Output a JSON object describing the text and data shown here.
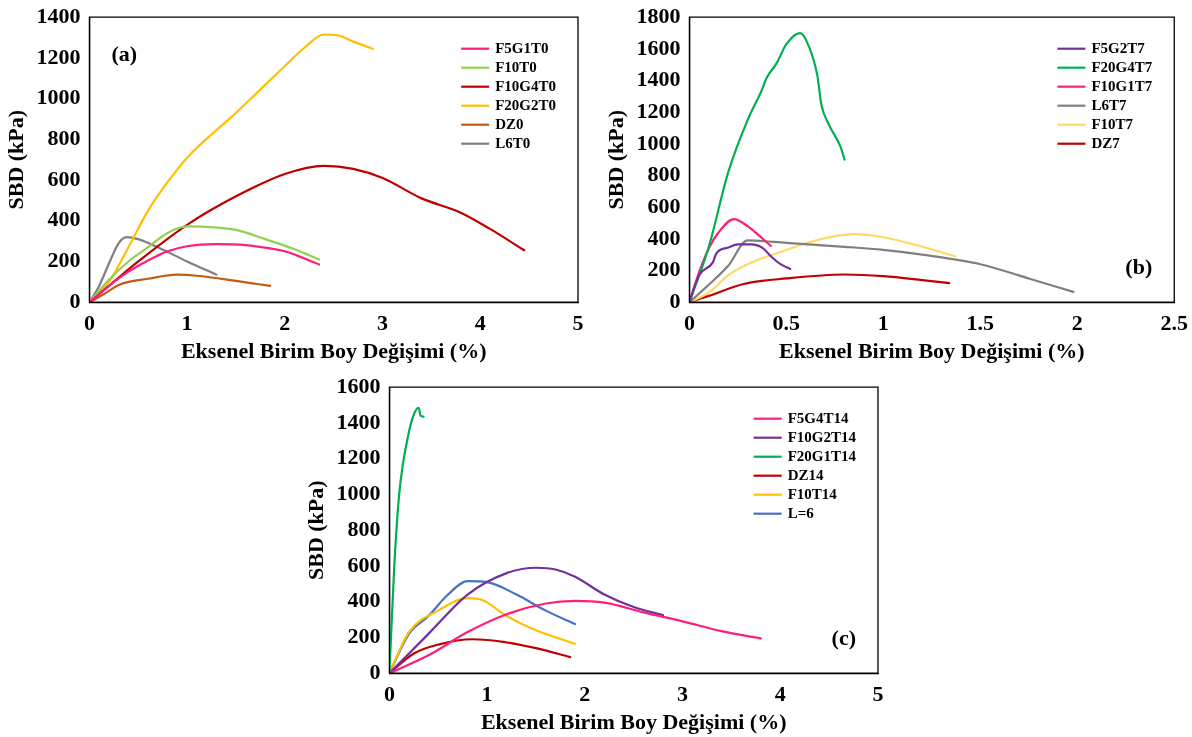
{
  "chart_data": [
    {
      "type": "line",
      "xlabel": "Eksenel Birim Boy Değişimi (%)",
      "ylabel": "SBD (kPa)",
      "annotations": [
        "(a)"
      ],
      "xlim": [
        0,
        5
      ],
      "xticks": [
        0,
        1,
        2,
        3,
        4,
        5
      ],
      "ylim": [
        0,
        1400
      ],
      "yticks": [
        0,
        200,
        400,
        600,
        800,
        1000,
        1200,
        1400
      ],
      "grid": false,
      "legend": "top right",
      "marker": "none",
      "line_style": "solid",
      "series": [
        {
          "name": "F5G1T0",
          "color": "#ff1f7a",
          "x": [
            0,
            0.2,
            0.4,
            0.6,
            0.8,
            1,
            1.3,
            1.6,
            2,
            2.35
          ],
          "values": [
            0,
            80,
            150,
            205,
            250,
            275,
            285,
            280,
            250,
            185
          ]
        },
        {
          "name": "F10T0",
          "color": "#92d050",
          "x": [
            0,
            0.2,
            0.4,
            0.6,
            0.8,
            1,
            1.2,
            1.5,
            1.8,
            2.1,
            2.35
          ],
          "values": [
            0,
            110,
            200,
            270,
            340,
            372,
            370,
            355,
            310,
            260,
            210
          ]
        },
        {
          "name": "F10G4T0",
          "color": "#c00000",
          "x": [
            0,
            0.2,
            0.5,
            1,
            1.5,
            2,
            2.4,
            2.7,
            3,
            3.4,
            3.8,
            4.1,
            4.45
          ],
          "values": [
            0,
            80,
            200,
            380,
            520,
            630,
            670,
            655,
            610,
            510,
            440,
            360,
            255
          ]
        },
        {
          "name": "F20G2T0",
          "color": "#ffc000",
          "x": [
            0,
            0.2,
            0.4,
            0.6,
            0.8,
            1,
            1.5,
            2,
            2.2,
            2.4,
            2.55,
            2.7,
            2.9
          ],
          "values": [
            0,
            100,
            270,
            450,
            590,
            710,
            930,
            1160,
            1250,
            1315,
            1310,
            1280,
            1245
          ]
        },
        {
          "name": "DZ0",
          "color": "#c55a11",
          "x": [
            0,
            0.15,
            0.3,
            0.6,
            0.9,
            1.1,
            1.5,
            1.85
          ],
          "values": [
            0,
            40,
            85,
            115,
            135,
            130,
            105,
            80
          ]
        },
        {
          "name": "L6T0",
          "color": "#7f7f7f",
          "x": [
            0,
            0.1,
            0.2,
            0.3,
            0.38,
            0.5,
            0.7,
            1,
            1.3
          ],
          "values": [
            0,
            80,
            190,
            290,
            320,
            310,
            270,
            200,
            135
          ]
        }
      ]
    },
    {
      "type": "line",
      "xlabel": "Eksenel Birim Boy Değişimi (%)",
      "ylabel": "SBD (kPa)",
      "annotations": [
        "(b)"
      ],
      "xlim": [
        0,
        2.5
      ],
      "xticks": [
        0,
        0.5,
        1,
        1.5,
        2,
        2.5
      ],
      "ylim": [
        0,
        1800
      ],
      "yticks": [
        0,
        200,
        400,
        600,
        800,
        1000,
        1200,
        1400,
        1600,
        1800
      ],
      "grid": false,
      "legend": "top right",
      "marker": "none",
      "line_style": "solid",
      "series": [
        {
          "name": "F5G2T7",
          "color": "#7030a0",
          "x": [
            0,
            0.05,
            0.12,
            0.14,
            0.2,
            0.25,
            0.32,
            0.38,
            0.42,
            0.47,
            0.52
          ],
          "values": [
            0,
            170,
            250,
            310,
            345,
            365,
            365,
            340,
            290,
            240,
            210
          ]
        },
        {
          "name": "F20G4T7",
          "color": "#00b050",
          "x": [
            0,
            0.1,
            0.2,
            0.3,
            0.37,
            0.4,
            0.45,
            0.5,
            0.57,
            0.6,
            0.66,
            0.68,
            0.72,
            0.78,
            0.8
          ],
          "values": [
            0,
            350,
            820,
            1150,
            1330,
            1420,
            1510,
            1630,
            1700,
            1660,
            1430,
            1250,
            1120,
            980,
            900
          ]
        },
        {
          "name": "F10G1T7",
          "color": "#ff1f7a",
          "x": [
            0,
            0.05,
            0.1,
            0.15,
            0.23,
            0.3,
            0.36,
            0.42
          ],
          "values": [
            0,
            190,
            340,
            440,
            525,
            480,
            420,
            355
          ]
        },
        {
          "name": "L6T7",
          "color": "#7f7f7f",
          "x": [
            0,
            0.1,
            0.2,
            0.3,
            0.5,
            0.8,
            1,
            1.2,
            1.5,
            1.75,
            1.98
          ],
          "values": [
            0,
            110,
            230,
            390,
            375,
            350,
            330,
            300,
            240,
            150,
            65
          ]
        },
        {
          "name": "F10T7",
          "color": "#ffd966",
          "x": [
            0,
            0.1,
            0.2,
            0.3,
            0.5,
            0.65,
            0.85,
            1,
            1.2,
            1.37
          ],
          "values": [
            0,
            60,
            170,
            240,
            330,
            390,
            430,
            410,
            350,
            290
          ]
        },
        {
          "name": "DZ7",
          "color": "#c00000",
          "x": [
            0,
            0.1,
            0.28,
            0.5,
            0.8,
            1,
            1.2,
            1.34
          ],
          "values": [
            0,
            40,
            115,
            150,
            175,
            165,
            140,
            120
          ]
        }
      ]
    },
    {
      "type": "line",
      "xlabel": "Eksenel Birim Boy Değişimi (%)",
      "ylabel": "SBD (kPa)",
      "annotations": [
        "(c)"
      ],
      "xlim": [
        0,
        5
      ],
      "xticks": [
        0,
        1,
        2,
        3,
        4,
        5
      ],
      "ylim": [
        0,
        1600
      ],
      "yticks": [
        0,
        200,
        400,
        600,
        800,
        1000,
        1200,
        1400,
        1600
      ],
      "grid": false,
      "legend": "top right",
      "marker": "none",
      "line_style": "solid",
      "series": [
        {
          "name": "F5G4T14",
          "color": "#ff1f7a",
          "x": [
            0,
            0.4,
            0.8,
            1.2,
            1.6,
            1.9,
            2.2,
            2.6,
            3,
            3.4,
            3.8
          ],
          "values": [
            0,
            100,
            230,
            330,
            390,
            405,
            395,
            340,
            290,
            235,
            195
          ]
        },
        {
          "name": "F10G2T14",
          "color": "#7030a0",
          "x": [
            0,
            0.4,
            0.8,
            1.2,
            1.5,
            1.7,
            1.9,
            2.2,
            2.5,
            2.8
          ],
          "values": [
            0,
            220,
            440,
            560,
            590,
            580,
            540,
            440,
            370,
            325
          ]
        },
        {
          "name": "F20G1T14",
          "color": "#00b050",
          "x": [
            0,
            0.05,
            0.1,
            0.2,
            0.26,
            0.3,
            0.32,
            0.35
          ],
          "values": [
            0,
            600,
            1000,
            1350,
            1460,
            1485,
            1440,
            1435
          ]
        },
        {
          "name": "DZ14",
          "color": "#c00000",
          "x": [
            0,
            0.25,
            0.5,
            0.85,
            1.1,
            1.5,
            1.85
          ],
          "values": [
            0,
            110,
            160,
            190,
            180,
            140,
            90
          ]
        },
        {
          "name": "F10T14",
          "color": "#ffc000",
          "x": [
            0,
            0.2,
            0.5,
            0.8,
            0.95,
            1.2,
            1.5,
            1.9
          ],
          "values": [
            0,
            230,
            350,
            420,
            410,
            320,
            240,
            165
          ]
        },
        {
          "name": "L=6",
          "color": "#4472c4",
          "x": [
            0,
            0.2,
            0.4,
            0.6,
            0.8,
            1,
            1.3,
            1.6,
            1.9
          ],
          "values": [
            0,
            220,
            320,
            440,
            515,
            510,
            440,
            350,
            275
          ]
        }
      ]
    }
  ]
}
